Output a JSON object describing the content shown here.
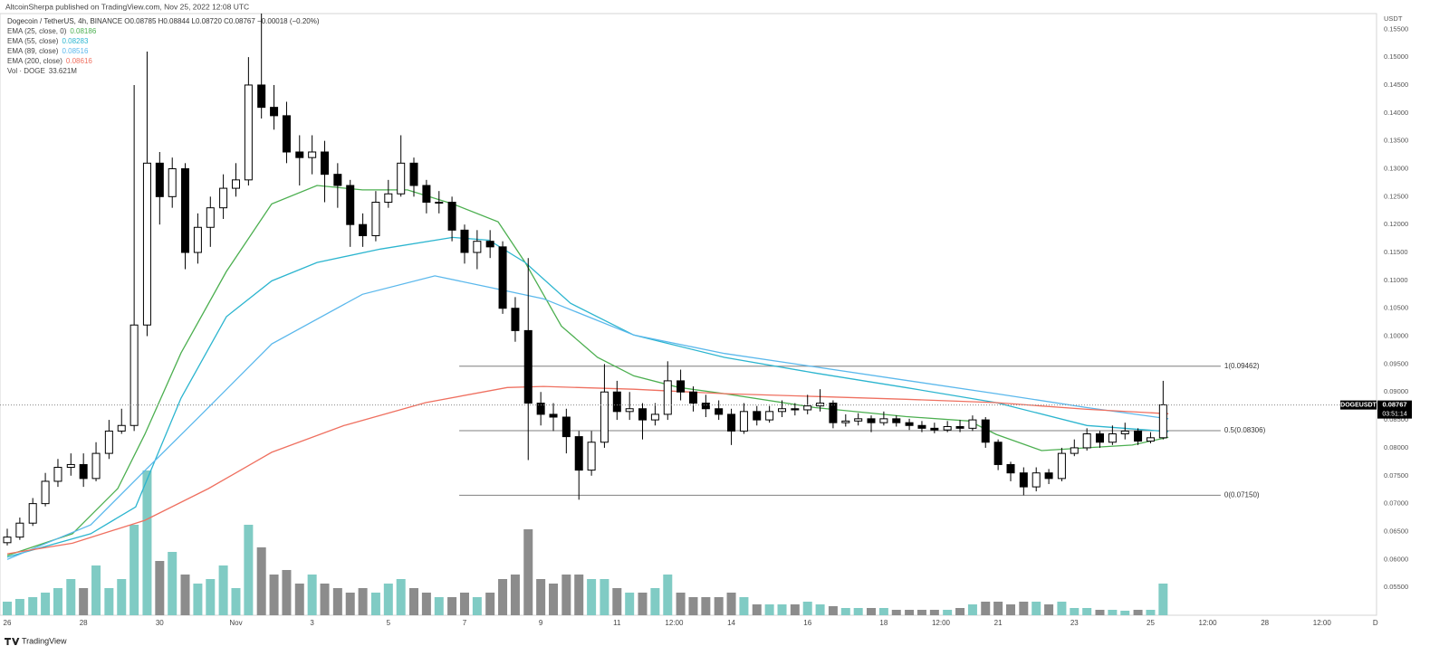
{
  "chart_data": {
    "type": "candlestick",
    "publisher_note": "AltcoinSherpa published on TradingView.com, Nov 25, 2022 12:08 UTC",
    "title": "Dogecoin / TetherUS, 4h, BINANCE  O0.08785 H0.08844 L0.08720 C0.08767 −0.00018 (−0.20%)",
    "y_axis_label": "USDT",
    "x": [
      0,
      0.33,
      0.67,
      1,
      1.33,
      1.67,
      2,
      2.33,
      2.67,
      3,
      3.33,
      3.67,
      4,
      4.33,
      4.67,
      5,
      5.33,
      5.67,
      6,
      6.33,
      6.67,
      7,
      7.33,
      7.67,
      8,
      8.33,
      8.67,
      9,
      9.33,
      9.67,
      10,
      10.33,
      10.67,
      11,
      11.33,
      11.67,
      12,
      12.33,
      12.67,
      13,
      13.33,
      13.67,
      14,
      14.33,
      14.67,
      15,
      15.33,
      15.67,
      16,
      16.33,
      16.67,
      17,
      17.33,
      17.67,
      18,
      18.33,
      18.67,
      19,
      19.33,
      19.67,
      20,
      20.33,
      20.67,
      21,
      21.33,
      21.67,
      22,
      22.33,
      22.67,
      23,
      23.33,
      23.67,
      24,
      24.33,
      24.67,
      25,
      25.33,
      25.67,
      26,
      26.33,
      26.67,
      27,
      27.33,
      27.67,
      28,
      28.33,
      28.67,
      29,
      29.33,
      29.67,
      30,
      30.33
    ],
    "open": [
      0.063,
      0.064,
      0.0665,
      0.07,
      0.074,
      0.0765,
      0.077,
      0.0745,
      0.079,
      0.083,
      0.084,
      0.102,
      0.131,
      0.125,
      0.13,
      0.115,
      0.1195,
      0.123,
      0.1265,
      0.128,
      0.145,
      0.141,
      0.1395,
      0.133,
      0.132,
      0.133,
      0.129,
      0.127,
      0.12,
      0.118,
      0.124,
      0.1255,
      0.131,
      0.127,
      0.124,
      0.124,
      0.119,
      0.115,
      0.117,
      0.116,
      0.105,
      0.101,
      0.088,
      0.086,
      0.0855,
      0.082,
      0.076,
      0.081,
      0.09,
      0.0865,
      0.087,
      0.085,
      0.086,
      0.092,
      0.09,
      0.088,
      0.087,
      0.086,
      0.083,
      0.0865,
      0.085,
      0.0865,
      0.087,
      0.0868,
      0.0875,
      0.088,
      0.0845,
      0.0848,
      0.0852,
      0.0845,
      0.0852,
      0.0845,
      0.084,
      0.0835,
      0.0832,
      0.0838,
      0.0835,
      0.085,
      0.081,
      0.077,
      0.0755,
      0.073,
      0.0755,
      0.0745,
      0.079,
      0.08,
      0.0825,
      0.081,
      0.0825,
      0.083,
      0.0812,
      0.0818
    ],
    "high": [
      0.0655,
      0.0675,
      0.071,
      0.0755,
      0.078,
      0.079,
      0.079,
      0.081,
      0.085,
      0.087,
      0.145,
      0.151,
      0.133,
      0.132,
      0.131,
      0.122,
      0.125,
      0.129,
      0.131,
      0.15,
      0.1578,
      0.145,
      0.142,
      0.136,
      0.136,
      0.135,
      0.131,
      0.128,
      0.122,
      0.126,
      0.128,
      0.136,
      0.132,
      0.128,
      0.126,
      0.125,
      0.12,
      0.119,
      0.119,
      0.117,
      0.107,
      0.114,
      0.09,
      0.088,
      0.087,
      0.083,
      0.083,
      0.095,
      0.092,
      0.09,
      0.088,
      0.088,
      0.0955,
      0.094,
      0.091,
      0.0895,
      0.0885,
      0.087,
      0.088,
      0.0875,
      0.0875,
      0.0885,
      0.088,
      0.0895,
      0.0905,
      0.0885,
      0.086,
      0.0862,
      0.0858,
      0.0865,
      0.0858,
      0.0852,
      0.0848,
      0.0845,
      0.0848,
      0.085,
      0.0858,
      0.0855,
      0.0815,
      0.0775,
      0.0765,
      0.0765,
      0.0762,
      0.08,
      0.0815,
      0.0835,
      0.083,
      0.084,
      0.0845,
      0.0835,
      0.0828,
      0.092
    ],
    "low": [
      0.0625,
      0.0635,
      0.066,
      0.0695,
      0.073,
      0.075,
      0.073,
      0.074,
      0.078,
      0.0825,
      0.083,
      0.1,
      0.12,
      0.123,
      0.112,
      0.113,
      0.116,
      0.121,
      0.125,
      0.127,
      0.139,
      0.137,
      0.131,
      0.127,
      0.129,
      0.124,
      0.123,
      0.116,
      0.116,
      0.117,
      0.123,
      0.125,
      0.125,
      0.122,
      0.122,
      0.117,
      0.113,
      0.112,
      0.114,
      0.104,
      0.099,
      0.0778,
      0.084,
      0.083,
      0.079,
      0.0707,
      0.075,
      0.08,
      0.085,
      0.085,
      0.0815,
      0.084,
      0.085,
      0.0885,
      0.0865,
      0.0855,
      0.085,
      0.0805,
      0.0825,
      0.084,
      0.0845,
      0.0855,
      0.0858,
      0.086,
      0.0865,
      0.0835,
      0.0838,
      0.084,
      0.0828,
      0.084,
      0.0838,
      0.0832,
      0.0828,
      0.0826,
      0.0828,
      0.0828,
      0.083,
      0.08,
      0.076,
      0.074,
      0.0715,
      0.0722,
      0.0735,
      0.074,
      0.0785,
      0.0795,
      0.08,
      0.0805,
      0.0815,
      0.0805,
      0.0808,
      0.0815
    ],
    "close": [
      0.064,
      0.0665,
      0.07,
      0.074,
      0.0765,
      0.077,
      0.0745,
      0.079,
      0.083,
      0.084,
      0.102,
      0.131,
      0.125,
      0.13,
      0.115,
      0.1195,
      0.123,
      0.1265,
      0.128,
      0.145,
      0.141,
      0.1395,
      0.133,
      0.132,
      0.133,
      0.129,
      0.127,
      0.12,
      0.118,
      0.124,
      0.1255,
      0.131,
      0.127,
      0.124,
      0.124,
      0.119,
      0.115,
      0.117,
      0.116,
      0.105,
      0.101,
      0.088,
      0.086,
      0.0855,
      0.082,
      0.076,
      0.081,
      0.09,
      0.0865,
      0.087,
      0.085,
      0.086,
      0.092,
      0.09,
      0.088,
      0.087,
      0.086,
      0.083,
      0.0865,
      0.085,
      0.0865,
      0.087,
      0.0868,
      0.0875,
      0.088,
      0.0845,
      0.0848,
      0.0852,
      0.0845,
      0.0852,
      0.0845,
      0.084,
      0.0835,
      0.0832,
      0.0838,
      0.0835,
      0.085,
      0.081,
      0.077,
      0.0755,
      0.073,
      0.0755,
      0.0745,
      0.079,
      0.08,
      0.0825,
      0.081,
      0.0825,
      0.083,
      0.0812,
      0.0818,
      0.0877
    ],
    "up_color": "#ffffff",
    "down_color": "#000000",
    "volume_label": "Vol · DOGE",
    "volume_last": "33.621M",
    "volume": [
      60,
      72,
      80,
      100,
      120,
      160,
      120,
      220,
      120,
      160,
      400,
      640,
      240,
      280,
      180,
      140,
      160,
      220,
      120,
      400,
      300,
      180,
      200,
      140,
      180,
      140,
      120,
      100,
      120,
      100,
      140,
      160,
      120,
      100,
      80,
      80,
      100,
      80,
      100,
      160,
      180,
      380,
      160,
      140,
      180,
      180,
      160,
      160,
      120,
      100,
      100,
      120,
      180,
      100,
      80,
      80,
      80,
      100,
      80,
      48,
      48,
      48,
      48,
      60,
      48,
      40,
      32,
      32,
      32,
      32,
      24,
      24,
      24,
      24,
      24,
      32,
      48,
      60,
      60,
      48,
      60,
      60,
      48,
      60,
      32,
      32,
      24,
      24,
      20,
      24,
      24,
      140
    ],
    "volume_ylim": [
      0,
      800
    ],
    "volume_up_color": "#80cbc4",
    "volume_down_color": "#8c8c8c",
    "series": [
      {
        "name": "EMA (25, close, 0)",
        "color": "#4caf50",
        "last_value": 0.08186,
        "x": [
          0,
          1.71,
          2.9,
          3.61,
          4.56,
          5.75,
          6.94,
          8.13,
          9.32,
          10.5,
          11.69,
          12.88,
          13.59,
          14.54,
          15.49,
          16.44,
          17.63,
          18.82,
          21.2,
          23.57,
          25.24,
          25.95,
          27.14,
          28.33,
          29.52,
          30.47
        ],
        "values": [
          0.0607,
          0.0646,
          0.0727,
          0.0824,
          0.097,
          0.1116,
          0.1237,
          0.127,
          0.1262,
          0.1262,
          0.1237,
          0.1205,
          0.1132,
          0.1018,
          0.0962,
          0.0929,
          0.0908,
          0.0897,
          0.0872,
          0.0856,
          0.0848,
          0.0824,
          0.0795,
          0.08,
          0.0805,
          0.0819
        ]
      },
      {
        "name": "EMA (55, close)",
        "color": "#2cb5cf",
        "last_value": 0.08283,
        "x": [
          0,
          2.19,
          3.37,
          4.56,
          5.75,
          6.94,
          8.13,
          9.79,
          11.69,
          12.64,
          13.59,
          14.78,
          16.44,
          18.82,
          21.2,
          23.57,
          25.95,
          28.33,
          30.47
        ],
        "values": [
          0.0604,
          0.0646,
          0.0694,
          0.0889,
          0.1035,
          0.1099,
          0.1132,
          0.1156,
          0.1177,
          0.1172,
          0.1132,
          0.1059,
          0.1002,
          0.0962,
          0.0934,
          0.0908,
          0.0881,
          0.084,
          0.0829
        ]
      },
      {
        "name": "EMA (89, close)",
        "color": "#5bb8ec",
        "last_value": 0.08516,
        "x": [
          0,
          2.19,
          3.61,
          5.04,
          6.94,
          9.32,
          11.22,
          12.76,
          14.07,
          16.44,
          18.82,
          21.2,
          23.57,
          25.95,
          28.33,
          30.47
        ],
        "values": [
          0.06,
          0.0662,
          0.0759,
          0.0856,
          0.0986,
          0.1075,
          0.1108,
          0.1086,
          0.1067,
          0.1002,
          0.0969,
          0.0945,
          0.0921,
          0.0897,
          0.0872,
          0.0852
        ]
      },
      {
        "name": "EMA (200, close)",
        "color": "#ef7060",
        "last_value": 0.08616,
        "x": [
          0,
          1.71,
          3.61,
          5.28,
          6.94,
          8.84,
          10.98,
          13.12,
          14.07,
          16.44,
          18.82,
          21.2,
          23.57,
          25.95,
          28.33,
          30.47
        ],
        "values": [
          0.061,
          0.0629,
          0.067,
          0.0727,
          0.0792,
          0.084,
          0.0881,
          0.0908,
          0.091,
          0.0905,
          0.0897,
          0.0892,
          0.0887,
          0.0881,
          0.0869,
          0.0861
        ]
      }
    ],
    "fib": {
      "x": [
        11.86,
        31.84
      ],
      "color": "#7f7f7f",
      "levels": [
        {
          "value": 0.09462,
          "label": "1(0.09462)"
        },
        {
          "value": 0.08306,
          "label": "0.5(0.08306)"
        },
        {
          "value": 0.0715,
          "label": "0(0.07150)"
        }
      ]
    },
    "last_price": {
      "symbol": "DOGEUSDT",
      "value": 0.08767,
      "countdown": "03:51:14"
    },
    "xlim": [
      -0.19,
      35.93
    ],
    "ylim": [
      0.05,
      0.1578
    ],
    "xticks": [
      {
        "value": 0,
        "label": "26"
      },
      {
        "value": 2,
        "label": "28"
      },
      {
        "value": 4,
        "label": "30"
      },
      {
        "value": 6,
        "label": "Nov"
      },
      {
        "value": 8,
        "label": "3"
      },
      {
        "value": 10,
        "label": "5"
      },
      {
        "value": 12,
        "label": "7"
      },
      {
        "value": 14,
        "label": "9"
      },
      {
        "value": 16,
        "label": "11"
      },
      {
        "value": 17.5,
        "label": "12:00"
      },
      {
        "value": 19,
        "label": "14"
      },
      {
        "value": 21,
        "label": "16"
      },
      {
        "value": 23,
        "label": "18"
      },
      {
        "value": 24.5,
        "label": "12:00"
      },
      {
        "value": 26,
        "label": "21"
      },
      {
        "value": 28,
        "label": "23"
      },
      {
        "value": 30,
        "label": "25"
      },
      {
        "value": 31.5,
        "label": "12:00"
      },
      {
        "value": 33,
        "label": "28"
      },
      {
        "value": 34.5,
        "label": "12:00"
      },
      {
        "value": 35.9,
        "label": "D"
      }
    ],
    "yticks": [
      {
        "value": 0.155,
        "label": "0.15500"
      },
      {
        "value": 0.15,
        "label": "0.15000"
      },
      {
        "value": 0.145,
        "label": "0.14500"
      },
      {
        "value": 0.14,
        "label": "0.14000"
      },
      {
        "value": 0.135,
        "label": "0.13500"
      },
      {
        "value": 0.13,
        "label": "0.13000"
      },
      {
        "value": 0.125,
        "label": "0.12500"
      },
      {
        "value": 0.12,
        "label": "0.12000"
      },
      {
        "value": 0.115,
        "label": "0.11500"
      },
      {
        "value": 0.11,
        "label": "0.11000"
      },
      {
        "value": 0.105,
        "label": "0.10500"
      },
      {
        "value": 0.1,
        "label": "0.10000"
      },
      {
        "value": 0.095,
        "label": "0.09500"
      },
      {
        "value": 0.09,
        "label": "0.09000"
      },
      {
        "value": 0.085,
        "label": "0.08500"
      },
      {
        "value": 0.08,
        "label": "0.08000"
      },
      {
        "value": 0.075,
        "label": "0.07500"
      },
      {
        "value": 0.07,
        "label": "0.07000"
      },
      {
        "value": 0.065,
        "label": "0.06500"
      },
      {
        "value": 0.06,
        "label": "0.06000"
      },
      {
        "value": 0.055,
        "label": "0.05500"
      }
    ],
    "grid": false
  },
  "footer": {
    "brand": "TradingView"
  }
}
